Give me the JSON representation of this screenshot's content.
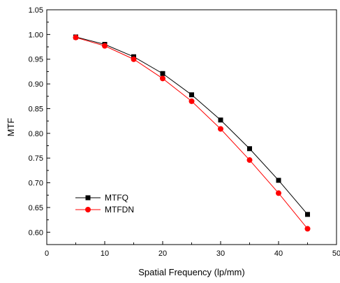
{
  "chart_data": {
    "type": "line",
    "title": "",
    "xlabel": "Spatial Frequency (lp/mm)",
    "ylabel": "MTF",
    "xlim": [
      0,
      50
    ],
    "ylim": [
      0.575,
      1.05
    ],
    "xticks": [
      0,
      10,
      20,
      30,
      40,
      50
    ],
    "xtick_labels": [
      "0",
      "10",
      "20",
      "30",
      "40",
      "50"
    ],
    "yticks": [
      0.6,
      0.65,
      0.7,
      0.75,
      0.8,
      0.85,
      0.9,
      0.95,
      1.0,
      1.05
    ],
    "ytick_labels": [
      "0.60",
      "0.65",
      "0.70",
      "0.75",
      "0.80",
      "0.85",
      "0.90",
      "0.95",
      "1.00",
      "1.05"
    ],
    "grid": false,
    "legend_position": "bottom-left",
    "x": [
      5,
      10,
      15,
      20,
      25,
      30,
      35,
      40,
      45
    ],
    "series": [
      {
        "name": "MTFQ",
        "color": "#000000",
        "marker": "square",
        "values": [
          0.995,
          0.98,
          0.955,
          0.921,
          0.878,
          0.827,
          0.769,
          0.705,
          0.636
        ]
      },
      {
        "name": "MTFDN",
        "color": "#ff0000",
        "marker": "circle",
        "values": [
          0.994,
          0.977,
          0.95,
          0.911,
          0.865,
          0.809,
          0.746,
          0.679,
          0.607
        ]
      }
    ]
  }
}
